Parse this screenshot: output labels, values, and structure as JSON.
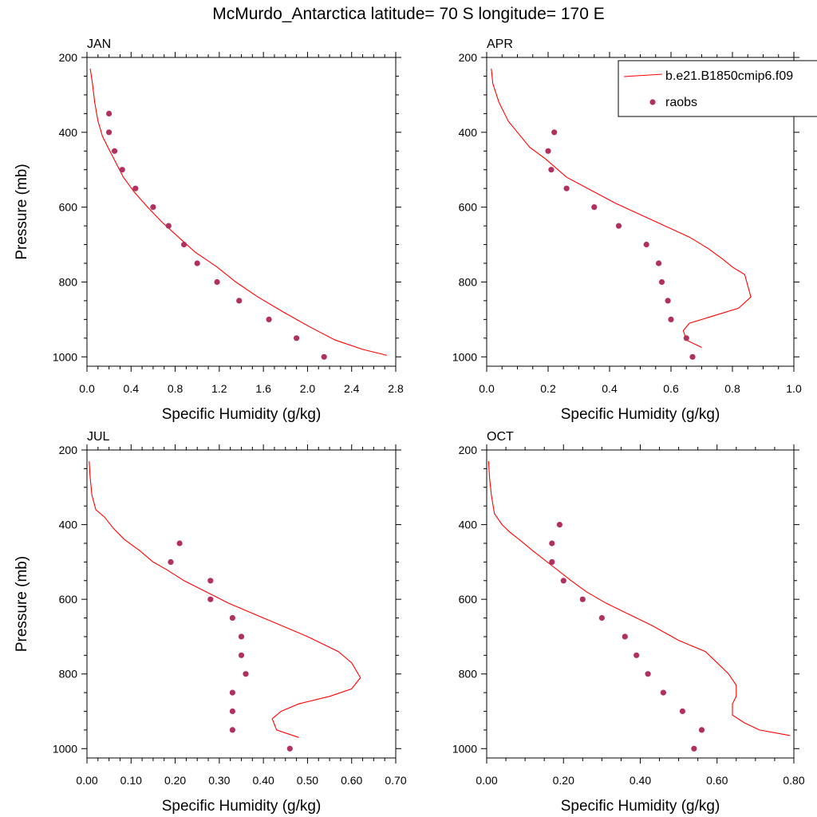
{
  "title": "McMurdo_Antarctica  latitude= 70 S longitude= 170 E",
  "colors": {
    "model": "#ff0000",
    "obs": "#b03060"
  },
  "legend": {
    "model_label": "b.e21.B1850cmip6.f09",
    "obs_label": "raobs",
    "placement": "top-right"
  },
  "chart_data": [
    {
      "type": "line",
      "title": "JAN",
      "xlabel": "Specific Humidity (g/kg)",
      "ylabel": "Pressure (mb)",
      "xlim": [
        0,
        2.8
      ],
      "ylim": [
        1025,
        200
      ],
      "xticks": [
        "0.0",
        "0.4",
        "0.8",
        "1.2",
        "1.6",
        "2.0",
        "2.4",
        "2.8"
      ],
      "xtick_values": [
        0,
        0.4,
        0.8,
        1.2,
        1.6,
        2.0,
        2.4,
        2.8
      ],
      "yticks": [
        200,
        400,
        600,
        800,
        1000
      ],
      "series": [
        {
          "name": "b.e21.B1850cmip6.f09",
          "kind": "line",
          "x": [
            0.03,
            0.05,
            0.07,
            0.1,
            0.14,
            0.19,
            0.26,
            0.33,
            0.43,
            0.55,
            0.68,
            0.83,
            0.98,
            1.18,
            1.35,
            1.55,
            1.78,
            2.02,
            2.25,
            2.5,
            2.72
          ],
          "y": [
            230,
            270,
            320,
            370,
            410,
            440,
            480,
            520,
            560,
            600,
            640,
            680,
            720,
            760,
            800,
            840,
            880,
            920,
            955,
            980,
            996
          ]
        },
        {
          "name": "raobs",
          "kind": "scatter",
          "x": [
            0.2,
            0.2,
            0.25,
            0.32,
            0.44,
            0.6,
            0.74,
            0.88,
            1.0,
            1.18,
            1.38,
            1.65,
            1.9,
            2.15
          ],
          "y": [
            350,
            400,
            450,
            500,
            550,
            600,
            650,
            700,
            750,
            800,
            850,
            900,
            950,
            1000
          ]
        }
      ]
    },
    {
      "type": "line",
      "title": "APR",
      "xlabel": "Specific Humidity (g/kg)",
      "ylabel": "",
      "xlim": [
        0,
        1.0
      ],
      "ylim": [
        1025,
        200
      ],
      "xticks": [
        "0.0",
        "0.2",
        "0.4",
        "0.6",
        "0.8",
        "1.0"
      ],
      "xtick_values": [
        0,
        0.2,
        0.4,
        0.6,
        0.8,
        1.0
      ],
      "yticks": [
        200,
        400,
        600,
        800,
        1000
      ],
      "series": [
        {
          "name": "b.e21.B1850cmip6.f09",
          "kind": "line",
          "x": [
            0.015,
            0.02,
            0.04,
            0.07,
            0.1,
            0.14,
            0.19,
            0.26,
            0.34,
            0.42,
            0.5,
            0.58,
            0.66,
            0.72,
            0.77,
            0.8,
            0.84,
            0.86,
            0.82,
            0.74,
            0.66,
            0.64,
            0.65,
            0.7
          ],
          "y": [
            230,
            270,
            320,
            370,
            400,
            440,
            470,
            520,
            555,
            590,
            620,
            650,
            680,
            710,
            740,
            760,
            780,
            840,
            870,
            890,
            910,
            930,
            955,
            975
          ]
        },
        {
          "name": "raobs",
          "kind": "scatter",
          "x": [
            0.22,
            0.2,
            0.21,
            0.26,
            0.35,
            0.43,
            0.52,
            0.56,
            0.57,
            0.59,
            0.6,
            0.65,
            0.67
          ],
          "y": [
            400,
            450,
            500,
            550,
            600,
            650,
            700,
            750,
            800,
            850,
            900,
            950,
            1000
          ]
        }
      ]
    },
    {
      "type": "line",
      "title": "JUL",
      "xlabel": "Specific Humidity (g/kg)",
      "ylabel": "Pressure (mb)",
      "xlim": [
        0,
        0.7
      ],
      "ylim": [
        1025,
        200
      ],
      "xticks": [
        "0.00",
        "0.10",
        "0.20",
        "0.30",
        "0.40",
        "0.50",
        "0.60",
        "0.70"
      ],
      "xtick_values": [
        0,
        0.1,
        0.2,
        0.3,
        0.4,
        0.5,
        0.6,
        0.7
      ],
      "yticks": [
        200,
        400,
        600,
        800,
        1000
      ],
      "series": [
        {
          "name": "b.e21.B1850cmip6.f09",
          "kind": "line",
          "x": [
            0.005,
            0.007,
            0.011,
            0.02,
            0.04,
            0.06,
            0.085,
            0.12,
            0.15,
            0.18,
            0.22,
            0.27,
            0.32,
            0.38,
            0.44,
            0.5,
            0.57,
            0.6,
            0.62,
            0.6,
            0.55,
            0.48,
            0.44,
            0.42,
            0.43,
            0.48
          ],
          "y": [
            230,
            270,
            320,
            360,
            380,
            410,
            440,
            470,
            500,
            520,
            550,
            580,
            610,
            640,
            670,
            700,
            740,
            770,
            810,
            840,
            860,
            880,
            900,
            920,
            950,
            970
          ]
        },
        {
          "name": "raobs",
          "kind": "scatter",
          "x": [
            0.21,
            0.19,
            0.28,
            0.28,
            0.33,
            0.35,
            0.35,
            0.36,
            0.33,
            0.33,
            0.33,
            0.46
          ],
          "y": [
            450,
            500,
            550,
            600,
            650,
            700,
            750,
            800,
            850,
            900,
            950,
            1000
          ]
        }
      ]
    },
    {
      "type": "line",
      "title": "OCT",
      "xlabel": "Specific Humidity (g/kg)",
      "ylabel": "",
      "xlim": [
        0,
        0.8
      ],
      "ylim": [
        1025,
        200
      ],
      "xticks": [
        "0.00",
        "0.20",
        "0.40",
        "0.60",
        "0.80"
      ],
      "xtick_values": [
        0,
        0.2,
        0.4,
        0.6,
        0.8
      ],
      "yticks": [
        200,
        400,
        600,
        800,
        1000
      ],
      "series": [
        {
          "name": "b.e21.B1850cmip6.f09",
          "kind": "line",
          "x": [
            0.005,
            0.007,
            0.012,
            0.02,
            0.04,
            0.06,
            0.085,
            0.12,
            0.17,
            0.22,
            0.26,
            0.31,
            0.37,
            0.43,
            0.5,
            0.57,
            0.6,
            0.63,
            0.65,
            0.65,
            0.64,
            0.64,
            0.67,
            0.71,
            0.79
          ],
          "y": [
            230,
            270,
            320,
            370,
            400,
            420,
            440,
            470,
            510,
            550,
            580,
            610,
            640,
            670,
            710,
            740,
            770,
            800,
            830,
            860,
            880,
            910,
            930,
            950,
            965
          ]
        },
        {
          "name": "raobs",
          "kind": "scatter",
          "x": [
            0.19,
            0.17,
            0.17,
            0.2,
            0.25,
            0.3,
            0.36,
            0.39,
            0.42,
            0.46,
            0.51,
            0.56,
            0.54
          ],
          "y": [
            400,
            450,
            500,
            550,
            600,
            650,
            700,
            750,
            800,
            850,
            900,
            950,
            1000
          ]
        }
      ]
    }
  ]
}
